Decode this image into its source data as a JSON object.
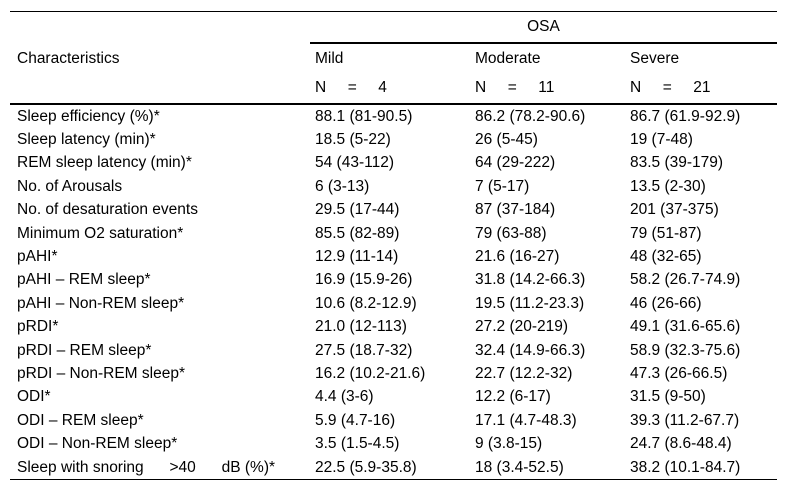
{
  "table": {
    "group_header": "OSA",
    "col1_header": "Characteristics",
    "columns": [
      {
        "label": "Mild",
        "n": "N     =     4"
      },
      {
        "label": "Moderate",
        "n": "N     =     11"
      },
      {
        "label": "Severe",
        "n": "N     =     21"
      }
    ],
    "rows": [
      {
        "label": "Sleep efficiency (%)*",
        "mild": "88.1 (81-90.5)",
        "moderate": "86.2 (78.2-90.6)",
        "severe": "86.7 (61.9-92.9)"
      },
      {
        "label": "Sleep latency (min)*",
        "mild": "18.5 (5-22)",
        "moderate": "26 (5-45)",
        "severe": "19 (7-48)"
      },
      {
        "label": "REM sleep latency (min)*",
        "mild": "54 (43-112)",
        "moderate": "64 (29-222)",
        "severe": "83.5 (39-179)"
      },
      {
        "label": "No. of Arousals",
        "mild": "6 (3-13)",
        "moderate": "7 (5-17)",
        "severe": "13.5 (2-30)"
      },
      {
        "label": "No. of desaturation events",
        "mild": "29.5 (17-44)",
        "moderate": "87 (37-184)",
        "severe": "201 (37-375)"
      },
      {
        "label": "Minimum O2 saturation*",
        "mild": "85.5 (82-89)",
        "moderate": "79 (63-88)",
        "severe": "79 (51-87)"
      },
      {
        "label": "pAHI*",
        "mild": "12.9 (11-14)",
        "moderate": "21.6 (16-27)",
        "severe": "48 (32-65)"
      },
      {
        "label": "pAHI – REM sleep*",
        "mild": "16.9 (15.9-26)",
        "moderate": "31.8 (14.2-66.3)",
        "severe": "58.2 (26.7-74.9)"
      },
      {
        "label": "pAHI – Non-REM sleep*",
        "mild": "10.6 (8.2-12.9)",
        "moderate": "19.5 (11.2-23.3)",
        "severe": "46 (26-66)"
      },
      {
        "label": "pRDI*",
        "mild": "21.0 (12-113)",
        "moderate": "27.2 (20-219)",
        "severe": "49.1 (31.6-65.6)"
      },
      {
        "label": "pRDI – REM sleep*",
        "mild": "27.5 (18.7-32)",
        "moderate": "32.4 (14.9-66.3)",
        "severe": "58.9 (32.3-75.6)"
      },
      {
        "label": "pRDI – Non-REM sleep*",
        "mild": "16.2 (10.2-21.6)",
        "moderate": "22.7 (12.2-32)",
        "severe": "47.3 (26-66.5)"
      },
      {
        "label": "ODI*",
        "mild": "4.4 (3-6)",
        "moderate": "12.2 (6-17)",
        "severe": "31.5 (9-50)"
      },
      {
        "label": "ODI – REM sleep*",
        "mild": "5.9 (4.7-16)",
        "moderate": "17.1 (4.7-48.3)",
        "severe": "39.3 (11.2-67.7)"
      },
      {
        "label": "ODI – Non-REM sleep*",
        "mild": "3.5 (1.5-4.5)",
        "moderate": "9 (3.8-15)",
        "severe": "24.7 (8.6-48.4)"
      },
      {
        "label": "Sleep with snoring      >40      dB (%)*",
        "mild": "22.5 (5.9-35.8)",
        "moderate": "18 (3.4-52.5)",
        "severe": "38.2 (10.1-84.7)"
      }
    ]
  }
}
